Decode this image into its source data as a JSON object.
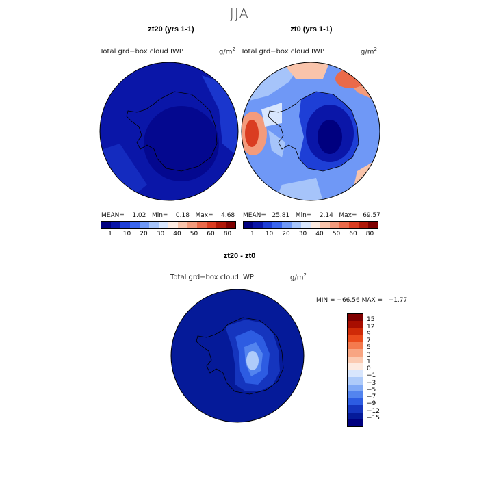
{
  "figure": {
    "season": "JJA"
  },
  "panels": [
    {
      "title": "zt20 (yrs 1-1)",
      "field": "Total grd−box cloud IWP",
      "units_base": "g/m",
      "units_exp": "2",
      "stats": "MEAN=    1.02   Min=    0.18   Max=    4.68",
      "colorbar_labels": [
        "1",
        "10",
        "20",
        "30",
        "40",
        "50",
        "60",
        "80"
      ]
    },
    {
      "title": "zt0 (yrs 1-1)",
      "field": "Total grd−box cloud IWP",
      "units_base": "g/m",
      "units_exp": "2",
      "stats": "MEAN=   25.81   Min=    2.14   Max=   69.57",
      "colorbar_labels": [
        "1",
        "10",
        "20",
        "30",
        "40",
        "50",
        "60",
        "80"
      ]
    }
  ],
  "diff": {
    "title": "zt20 - zt0",
    "field": "Total grd−box cloud IWP",
    "units_base": "g/m",
    "units_exp": "2",
    "minmax": "MIN = −66.56 MAX =   −1.77",
    "colorbar_labels": [
      "15",
      "12",
      "9",
      "7",
      "5",
      "3",
      "1",
      "0",
      "−1",
      "−3",
      "−5",
      "−7",
      "−9",
      "−12",
      "−15"
    ]
  },
  "colors": {
    "abs_scale": [
      "#00007f",
      "#0a16a8",
      "#1e3fd6",
      "#3a66ee",
      "#6f98f6",
      "#a6c4fa",
      "#d8e6fd",
      "#fdebe1",
      "#f9c4ab",
      "#f39b7c",
      "#ea6a4a",
      "#da3d21",
      "#b01808",
      "#7f0000"
    ],
    "diff_scale": [
      "#7f0000",
      "#a80d00",
      "#cf2a07",
      "#ea4b1c",
      "#f47a4e",
      "#f8a582",
      "#fbcab1",
      "#fdeae0",
      "#d8e6fd",
      "#aecbfa",
      "#80a9f6",
      "#5384ef",
      "#2d5ce2",
      "#1535be",
      "#051a99",
      "#00007f"
    ]
  }
}
